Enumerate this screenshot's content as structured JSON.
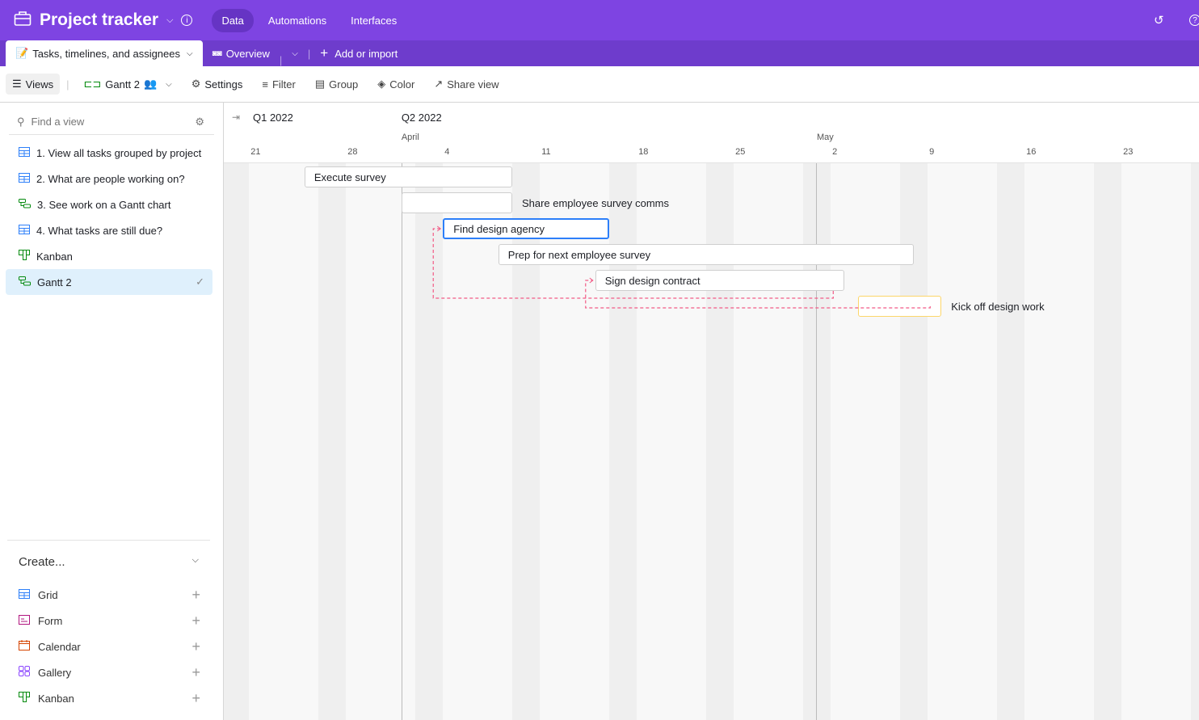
{
  "app": {
    "title": "Project tracker",
    "nav": [
      {
        "label": "Data",
        "active": true
      },
      {
        "label": "Automations"
      },
      {
        "label": "Interfaces"
      }
    ]
  },
  "tabs": {
    "table": "Tasks, timelines, and assignees",
    "overview": "Overview",
    "add": "Add or import"
  },
  "toolbar": {
    "views": "Views",
    "view_name": "Gantt 2",
    "settings": "Settings",
    "filter": "Filter",
    "group": "Group",
    "color": "Color",
    "share": "Share view"
  },
  "sidebar": {
    "search_placeholder": "Find a view",
    "views": [
      {
        "label": "1. View all tasks grouped by project",
        "icon": "grid-icon"
      },
      {
        "label": "2. What are people working on?",
        "icon": "grid-icon"
      },
      {
        "label": "3. See work on a Gantt chart",
        "icon": "gantt-icon"
      },
      {
        "label": "4. What tasks are still due?",
        "icon": "grid-icon"
      },
      {
        "label": "Kanban",
        "icon": "kanban-icon"
      },
      {
        "label": "Gantt 2",
        "icon": "gantt-icon",
        "selected": true
      }
    ],
    "create_label": "Create...",
    "create_items": [
      {
        "label": "Grid",
        "icon": "grid-icon",
        "color": "#2d7ff9"
      },
      {
        "label": "Form",
        "icon": "form-icon",
        "color": "#b1157f"
      },
      {
        "label": "Calendar",
        "icon": "calendar-icon",
        "color": "#d54401"
      },
      {
        "label": "Gallery",
        "icon": "gallery-icon",
        "color": "#8b46ff"
      },
      {
        "label": "Kanban",
        "icon": "kanban-icon",
        "color": "#048a0e"
      }
    ]
  },
  "timeline": {
    "quarters": [
      {
        "label": "Q1 2022",
        "date": "2022-03-19"
      },
      {
        "label": "Q2 2022",
        "date": "2022-04-01"
      }
    ],
    "months": [
      {
        "label": "April",
        "date": "2022-04-01"
      },
      {
        "label": "May",
        "date": "2022-05-01"
      }
    ],
    "weeks": [
      "21",
      "28",
      "4",
      "11",
      "18",
      "25",
      "2",
      "9",
      "16",
      "23"
    ],
    "today": "2022-05-01"
  },
  "tasks": [
    {
      "name": "Execute survey",
      "start": "2022-03-25",
      "end": "2022-04-08",
      "label_inside": true
    },
    {
      "name": "Share employee survey comms",
      "start": "2022-04-01",
      "end": "2022-04-08",
      "label_inside": false
    },
    {
      "name": "Find design agency",
      "start": "2022-04-04",
      "end": "2022-04-15",
      "label_inside": true,
      "selected": true
    },
    {
      "name": "Prep for next employee survey",
      "start": "2022-04-08",
      "end": "2022-05-07",
      "label_inside": true
    },
    {
      "name": "Sign design contract",
      "start": "2022-04-15",
      "end": "2022-05-02",
      "label_inside": true
    },
    {
      "name": "Kick off design work",
      "start": "2022-05-04",
      "end": "2022-05-09",
      "label_inside": false,
      "highlight": "#fcd66a"
    }
  ],
  "dependencies": [
    {
      "from": 4,
      "to": 2
    },
    {
      "from": 5,
      "to": 4
    }
  ],
  "colors": {
    "header": "#7e44e2",
    "tabbar": "#6e3ccc",
    "selected_border": "#2d7ff9",
    "dependency": "#f25b86"
  }
}
